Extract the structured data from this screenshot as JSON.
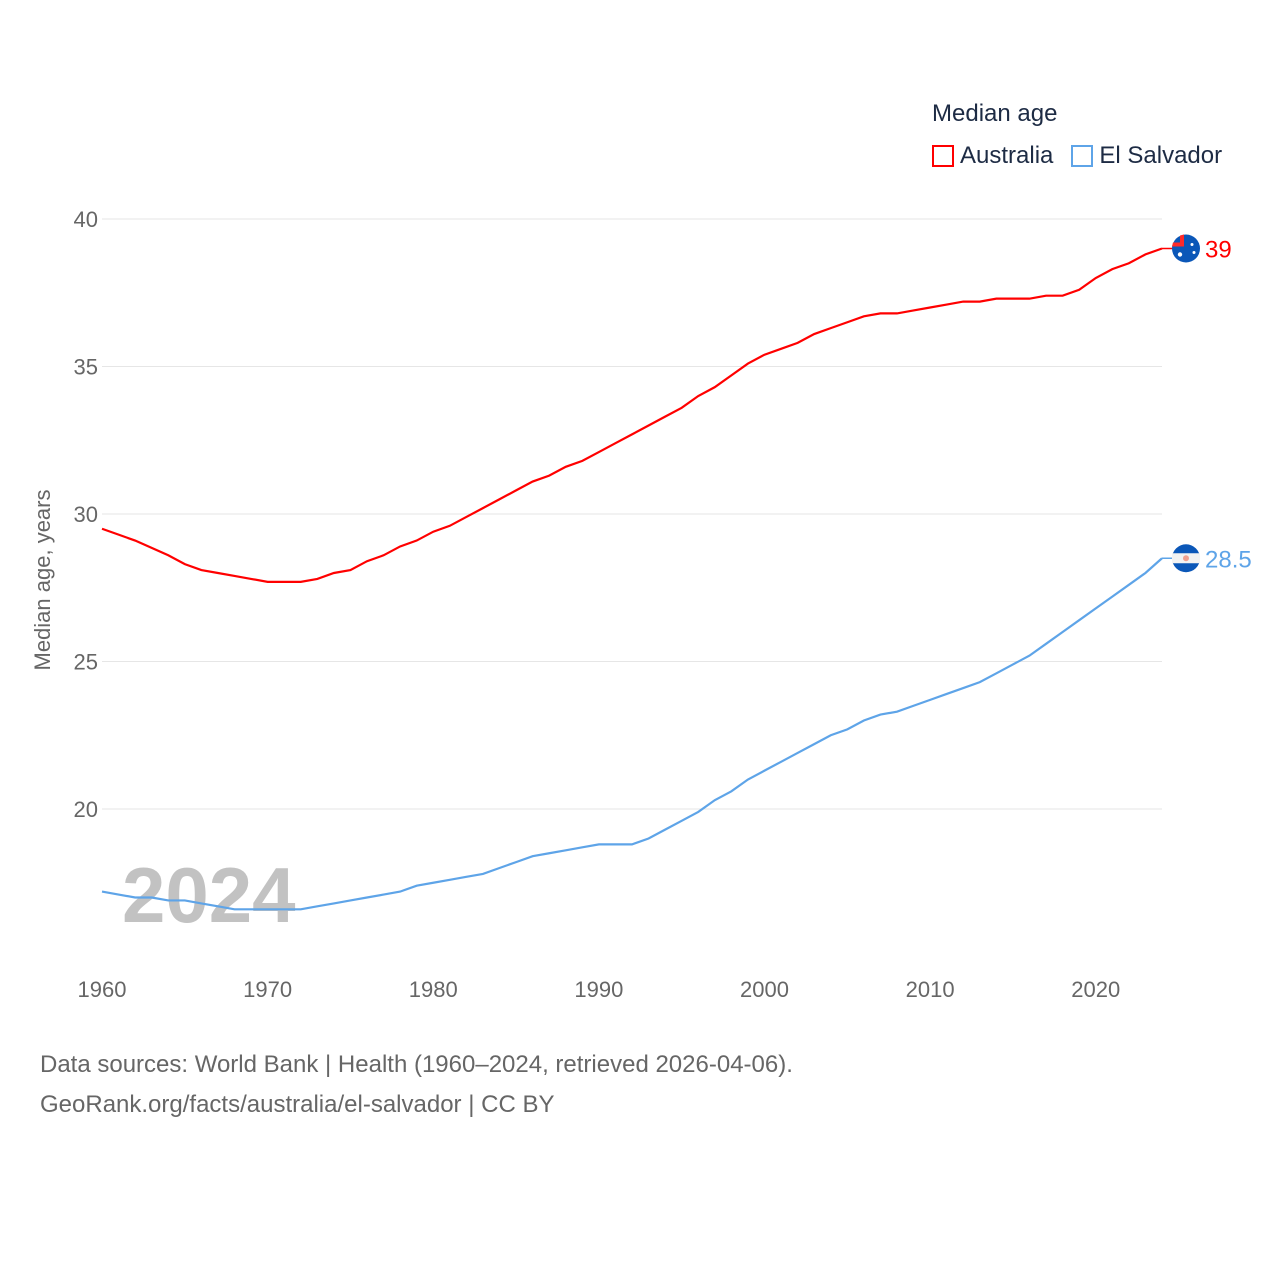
{
  "chart_data": {
    "type": "line",
    "title": "Median age",
    "ylabel": "Median age, years",
    "xlabel": "",
    "year_watermark": "2024",
    "xlim": [
      1960,
      2024
    ],
    "ylim": [
      15.9,
      40
    ],
    "x_ticks": [
      1960,
      1970,
      1980,
      1990,
      2000,
      2010,
      2020
    ],
    "y_ticks": [
      20,
      25,
      30,
      35,
      40
    ],
    "grid": true,
    "legend_position": "top-right",
    "x": [
      1960,
      1961,
      1962,
      1963,
      1964,
      1965,
      1966,
      1967,
      1968,
      1969,
      1970,
      1971,
      1972,
      1973,
      1974,
      1975,
      1976,
      1977,
      1978,
      1979,
      1980,
      1981,
      1982,
      1983,
      1984,
      1985,
      1986,
      1987,
      1988,
      1989,
      1990,
      1991,
      1992,
      1993,
      1994,
      1995,
      1996,
      1997,
      1998,
      1999,
      2000,
      2001,
      2002,
      2003,
      2004,
      2005,
      2006,
      2007,
      2008,
      2009,
      2010,
      2011,
      2012,
      2013,
      2014,
      2015,
      2016,
      2017,
      2018,
      2019,
      2020,
      2021,
      2022,
      2023,
      2024
    ],
    "series": [
      {
        "name": "Australia",
        "color": "#ff0000",
        "end_label": "39",
        "values": [
          29.5,
          29.3,
          29.1,
          28.85,
          28.6,
          28.3,
          28.1,
          28.0,
          27.9,
          27.8,
          27.7,
          27.7,
          27.7,
          27.8,
          28.0,
          28.1,
          28.4,
          28.6,
          28.9,
          29.1,
          29.4,
          29.6,
          29.9,
          30.2,
          30.5,
          30.8,
          31.1,
          31.3,
          31.6,
          31.8,
          32.1,
          32.4,
          32.7,
          33.0,
          33.3,
          33.6,
          34.0,
          34.3,
          34.7,
          35.1,
          35.4,
          35.6,
          35.8,
          36.1,
          36.3,
          36.5,
          36.7,
          36.8,
          36.8,
          36.9,
          37.0,
          37.1,
          37.2,
          37.2,
          37.3,
          37.3,
          37.3,
          37.4,
          37.4,
          37.6,
          38.0,
          38.3,
          38.5,
          38.8,
          39.0
        ]
      },
      {
        "name": "El Salvador",
        "color": "#5ea4e8",
        "end_label": "28.5",
        "values": [
          17.2,
          17.1,
          17.0,
          17.0,
          16.9,
          16.9,
          16.8,
          16.7,
          16.6,
          16.6,
          16.6,
          16.6,
          16.6,
          16.7,
          16.8,
          16.9,
          17.0,
          17.1,
          17.2,
          17.4,
          17.5,
          17.6,
          17.7,
          17.8,
          18.0,
          18.2,
          18.4,
          18.5,
          18.6,
          18.7,
          18.8,
          18.8,
          18.8,
          19.0,
          19.3,
          19.6,
          19.9,
          20.3,
          20.6,
          21.0,
          21.3,
          21.6,
          21.9,
          22.2,
          22.5,
          22.7,
          23.0,
          23.2,
          23.3,
          23.5,
          23.7,
          23.9,
          24.1,
          24.3,
          24.6,
          24.9,
          25.2,
          25.6,
          26.0,
          26.4,
          26.8,
          27.2,
          27.6,
          28.0,
          28.5
        ]
      }
    ]
  },
  "source": {
    "line1": "Data sources: World Bank | Health (1960–2024, retrieved 2026-04-06).",
    "line2": "GeoRank.org/facts/australia/el-salvador | CC BY"
  }
}
